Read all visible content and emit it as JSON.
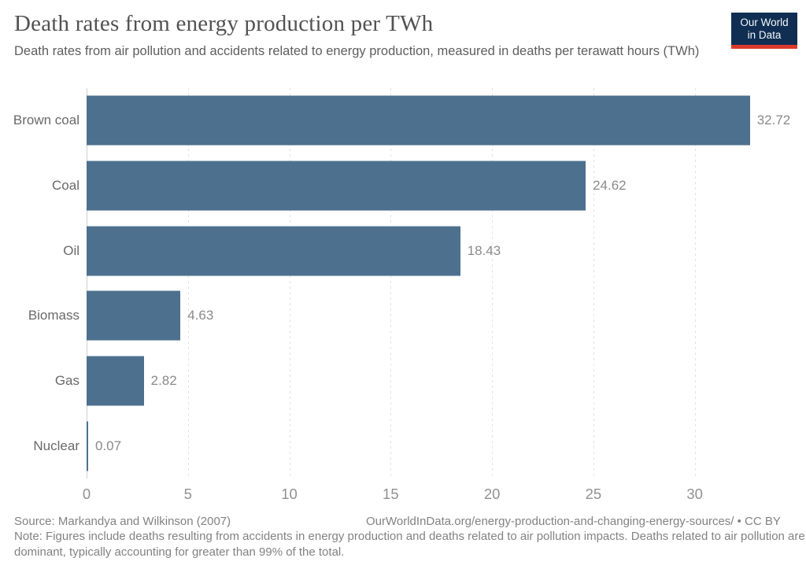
{
  "header": {
    "title": "Death rates from energy production per TWh",
    "subtitle": "Death rates from air pollution and accidents related to energy production, measured in deaths per terawatt hours (TWh)",
    "logo": {
      "line1": "Our World",
      "line2": "in Data",
      "background_color": "#0f2e52",
      "accent_color": "#dc3a2c"
    }
  },
  "chart_data": {
    "type": "bar",
    "orientation": "horizontal",
    "title": "Death rates from energy production per TWh",
    "categories": [
      "Brown coal",
      "Coal",
      "Oil",
      "Biomass",
      "Gas",
      "Nuclear"
    ],
    "values": [
      32.72,
      24.62,
      18.43,
      4.63,
      2.82,
      0.07
    ],
    "value_labels": [
      "32.72",
      "24.62",
      "18.43",
      "4.63",
      "2.82",
      "0.07"
    ],
    "xlabel": "",
    "ylabel": "",
    "xlim": [
      0,
      34.4
    ],
    "xticks": [
      0,
      5,
      10,
      15,
      20,
      25,
      30
    ],
    "grid": "dashed-vertical",
    "legend": "none",
    "bar_color": "#4d708e",
    "value_label_color": "#8a8a8a",
    "unit": "deaths per TWh"
  },
  "footer": {
    "source": "Source: Markandya and Wilkinson (2007)",
    "link": "OurWorldInData.org/energy-production-and-changing-energy-sources/ • CC BY",
    "note": "Note: Figures include deaths resulting from accidents in energy production and deaths related to air pollution impacts. Deaths related to air pollution are dominant, typically accounting for greater than 99% of the total."
  }
}
